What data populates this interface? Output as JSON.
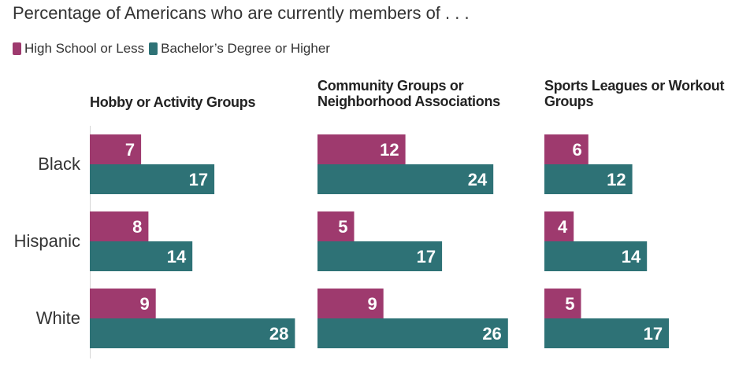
{
  "title": "Percentage of Americans who are currently members of . . .",
  "legend": [
    {
      "label": "High School or Less",
      "color": "#9e3a6e"
    },
    {
      "label": "Bachelor’s Degree or Higher",
      "color": "#2e7276"
    }
  ],
  "chart_data": {
    "type": "bar",
    "orientation": "horizontal",
    "grouping": "small-multiples",
    "categories": [
      "Black",
      "Hispanic",
      "White"
    ],
    "panels": [
      {
        "title": "Hobby or Activity Groups",
        "series": [
          {
            "name": "High School or Less",
            "values": [
              7,
              8,
              9
            ]
          },
          {
            "name": "Bachelor’s Degree or Higher",
            "values": [
              17,
              14,
              28
            ]
          }
        ]
      },
      {
        "title": "Community Groups or Neighborhood Associations",
        "series": [
          {
            "name": "High School or Less",
            "values": [
              12,
              5,
              9
            ]
          },
          {
            "name": "Bachelor’s Degree or Higher",
            "values": [
              24,
              17,
              26
            ]
          }
        ]
      },
      {
        "title": "Sports Leagues or Workout Groups",
        "series": [
          {
            "name": "High School or Less",
            "values": [
              6,
              4,
              5
            ]
          },
          {
            "name": "Bachelor’s Degree or Higher",
            "values": [
              12,
              14,
              17
            ]
          }
        ]
      }
    ],
    "colors": [
      "#9e3a6e",
      "#2e7276"
    ],
    "data_labels": true,
    "grid": false,
    "legend_position": "top-left"
  }
}
